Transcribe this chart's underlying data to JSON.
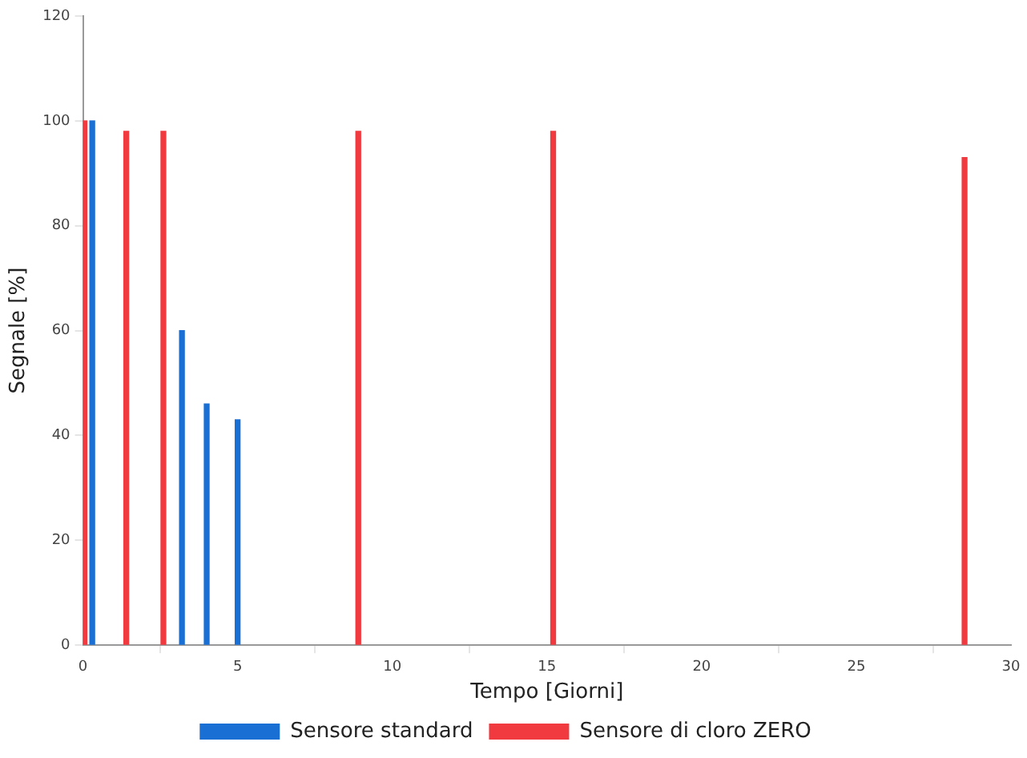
{
  "chart_data": {
    "type": "bar",
    "xlabel": "Tempo [Giorni]",
    "ylabel": "Segnale [%]",
    "series": [
      {
        "name": "Sensore standard",
        "color": "#1a6fd4",
        "x": [
          0.3,
          3.2,
          4.0,
          5.0
        ],
        "values": [
          100,
          60,
          46,
          43
        ]
      },
      {
        "name": "Sensore di cloro ZERO",
        "color": "#f03a3f",
        "x": [
          0.05,
          1.4,
          2.6,
          8.9,
          15.2,
          28.5
        ],
        "values": [
          100,
          98,
          98,
          98,
          98,
          93
        ]
      }
    ],
    "xlim": [
      0,
      30
    ],
    "xticks": [
      0,
      5,
      10,
      15,
      20,
      25,
      30
    ],
    "ylim": [
      0,
      120
    ],
    "yticks": [
      0,
      20,
      40,
      60,
      80,
      100,
      120
    ],
    "grid": false,
    "legend": "bottom"
  }
}
